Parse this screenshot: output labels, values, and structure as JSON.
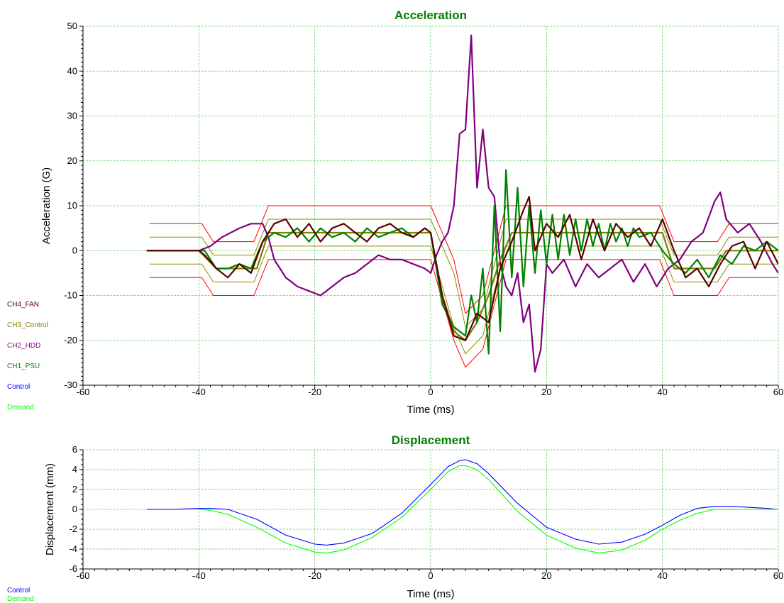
{
  "chart_data": [
    {
      "type": "line",
      "title": "Acceleration",
      "xlabel": "Time (ms)",
      "ylabel": "Acceleration (G)",
      "xlim": [
        -60,
        60
      ],
      "ylim": [
        -30,
        50
      ],
      "xticks": [
        -60,
        -40,
        -20,
        0,
        20,
        40,
        60
      ],
      "yticks": [
        -30,
        -20,
        -10,
        0,
        10,
        20,
        30,
        40,
        50
      ],
      "grid": true,
      "legend_position": "left",
      "legend": [
        "CH4_FAN",
        "CH3_Control",
        "CH2_HDD",
        "CH1_PSU",
        "Control",
        "Demand"
      ],
      "tolerance_bands": [
        {
          "color": "#ff0000",
          "x": [
            -48.5,
            -39.5,
            -37.5,
            -30.5,
            -28,
            0,
            4,
            6,
            9,
            13,
            39.5,
            42,
            49.5,
            51.5,
            60
          ],
          "upper": [
            6,
            6,
            2,
            2,
            10,
            10,
            -2,
            -14,
            -10,
            10,
            10,
            2,
            2,
            6,
            6
          ],
          "lower": [
            -6,
            -6,
            -10,
            -10,
            -2,
            -2,
            -20,
            -26,
            -22,
            -2,
            -2,
            -10,
            -10,
            -6,
            -6
          ]
        },
        {
          "color": "#8b8b00",
          "x": [
            -48.5,
            -39.5,
            -37.5,
            -30.5,
            -28,
            0,
            4,
            6,
            9,
            13,
            39.5,
            42,
            49.5,
            51.5,
            60
          ],
          "upper": [
            3,
            3,
            -1,
            -1,
            7,
            7,
            -5,
            -17,
            -13,
            7,
            7,
            -1,
            -1,
            3,
            3
          ],
          "lower": [
            -3,
            -3,
            -7,
            -7,
            1,
            1,
            -17,
            -23,
            -19,
            1,
            1,
            -7,
            -7,
            -3,
            -3
          ]
        }
      ],
      "series": [
        {
          "name": "CH4_FAN",
          "color": "#5a0000",
          "x": [
            -49,
            -40,
            -39,
            -37,
            -35,
            -33,
            -31,
            -29,
            -27,
            -25,
            -23,
            -21,
            -19,
            -17,
            -15,
            -13,
            -11,
            -9,
            -7,
            -5,
            -3,
            -1,
            0,
            2,
            4,
            6,
            8,
            10,
            12,
            14,
            16,
            17,
            18,
            20,
            22,
            24,
            26,
            28,
            30,
            32,
            34,
            36,
            38,
            40,
            42,
            44,
            46,
            48,
            50,
            52,
            54,
            56,
            58,
            60
          ],
          "values": [
            0,
            0,
            -1,
            -4,
            -6,
            -3,
            -5,
            2,
            6,
            7,
            3,
            6,
            2,
            5,
            6,
            4,
            2,
            5,
            6,
            4,
            3,
            5,
            4,
            -10,
            -19,
            -20,
            -14,
            -16,
            -4,
            2,
            9,
            12,
            0,
            6,
            3,
            8,
            -2,
            7,
            0,
            6,
            3,
            5,
            1,
            7,
            0,
            -6,
            -4,
            -8,
            -3,
            1,
            2,
            -4,
            2,
            -3
          ]
        },
        {
          "name": "CH3_Control",
          "color": "#808000",
          "x": [
            -49,
            -40,
            -37,
            -30,
            -28,
            0,
            2,
            4,
            6,
            8,
            10,
            12,
            14,
            20,
            30,
            38,
            40,
            42,
            49,
            51,
            60
          ],
          "values": [
            0,
            0,
            -4,
            -4,
            4,
            4,
            -10,
            -18,
            -20,
            -16,
            -10,
            -2,
            4,
            4,
            4,
            4,
            4,
            -4,
            -4,
            0,
            0
          ]
        },
        {
          "name": "CH2_HDD",
          "color": "#800080",
          "x": [
            -49,
            -40,
            -38,
            -36,
            -33,
            -31,
            -29,
            -28,
            -27,
            -25,
            -23,
            -21,
            -19,
            -17,
            -15,
            -13,
            -11,
            -9,
            -7,
            -5,
            -3,
            -1,
            0,
            1,
            2,
            3,
            4,
            5,
            6,
            7,
            8,
            9,
            10,
            11,
            12,
            13,
            14,
            15,
            16,
            17,
            18,
            19,
            20,
            21,
            23,
            25,
            27,
            29,
            31,
            33,
            35,
            37,
            39,
            41,
            43,
            45,
            47,
            49,
            50,
            51,
            53,
            55,
            57,
            59,
            60
          ],
          "values": [
            0,
            0,
            1,
            3,
            5,
            6,
            6,
            3,
            -2,
            -6,
            -8,
            -9,
            -10,
            -8,
            -6,
            -5,
            -3,
            -1,
            -2,
            -2,
            -3,
            -4,
            -5,
            -1,
            2,
            4,
            10,
            26,
            27,
            48,
            14,
            27,
            14,
            12,
            -3,
            -8,
            -10,
            -5,
            -16,
            -12,
            -27,
            -22,
            -3,
            -5,
            -2,
            -8,
            -3,
            -6,
            -4,
            -2,
            -7,
            -3,
            -8,
            -4,
            -2,
            2,
            4,
            11,
            13,
            7,
            4,
            6,
            2,
            -3,
            -5
          ]
        },
        {
          "name": "CH1_PSU",
          "color": "#008000",
          "x": [
            -49,
            -40,
            -39,
            -37,
            -35,
            -33,
            -31,
            -29,
            -27,
            -25,
            -23,
            -21,
            -19,
            -17,
            -15,
            -13,
            -11,
            -9,
            -7,
            -5,
            -3,
            -1,
            0,
            2,
            4,
            6,
            7,
            8,
            9,
            10,
            11,
            12,
            13,
            14,
            15,
            16,
            17,
            18,
            19,
            20,
            21,
            22,
            23,
            24,
            25,
            26,
            27,
            28,
            29,
            30,
            31,
            32,
            33,
            34,
            35,
            36,
            38,
            40,
            42,
            44,
            46,
            48,
            50,
            52,
            54,
            56,
            58,
            60
          ],
          "values": [
            0,
            0,
            0,
            -4,
            -4,
            -3,
            -4,
            2,
            4,
            3,
            5,
            2,
            5,
            3,
            4,
            2,
            5,
            3,
            4,
            5,
            3,
            5,
            4,
            -12,
            -17,
            -19,
            -10,
            -16,
            -4,
            -23,
            10,
            -18,
            18,
            -6,
            14,
            -8,
            10,
            -5,
            9,
            -3,
            8,
            -2,
            8,
            -1,
            7,
            0,
            7,
            1,
            6,
            0,
            6,
            2,
            5,
            1,
            5,
            3,
            4,
            0,
            -3,
            -5,
            -2,
            -6,
            -1,
            -3,
            1,
            0,
            2,
            0
          ]
        }
      ]
    },
    {
      "type": "line",
      "title": "Displacement",
      "xlabel": "Time (ms)",
      "ylabel": "Displacement (mm)",
      "xlim": [
        -60,
        60
      ],
      "ylim": [
        -6,
        6
      ],
      "xticks": [
        -60,
        -40,
        -20,
        0,
        20,
        40,
        60
      ],
      "yticks": [
        -6,
        -4,
        -2,
        0,
        2,
        4,
        6
      ],
      "grid": true,
      "legend_position": "left",
      "legend": [
        "Control",
        "Demand"
      ],
      "series": [
        {
          "name": "Control",
          "color": "#0000ff",
          "x": [
            -49,
            -44,
            -40,
            -38,
            -35,
            -30,
            -25,
            -20,
            -18,
            -15,
            -10,
            -5,
            0,
            3,
            5,
            6,
            8,
            10,
            15,
            20,
            25,
            29,
            33,
            37,
            40,
            43,
            46,
            49,
            52,
            55,
            58,
            60
          ],
          "values": [
            0,
            0,
            0.1,
            0.1,
            0,
            -1,
            -2.6,
            -3.5,
            -3.6,
            -3.4,
            -2.4,
            -0.4,
            2.5,
            4.3,
            4.9,
            5,
            4.6,
            3.6,
            0.6,
            -1.8,
            -3,
            -3.5,
            -3.3,
            -2.5,
            -1.6,
            -0.6,
            0.1,
            0.3,
            0.3,
            0.2,
            0.1,
            0
          ]
        },
        {
          "name": "Demand",
          "color": "#00ff00",
          "x": [
            -40,
            -38,
            -35,
            -30,
            -25,
            -20,
            -18,
            -15,
            -10,
            -5,
            0,
            3,
            5,
            6,
            8,
            10,
            15,
            20,
            25,
            29,
            33,
            37,
            40,
            43,
            46,
            49,
            52,
            55,
            58,
            60
          ],
          "values": [
            0,
            -0.1,
            -0.5,
            -1.8,
            -3.4,
            -4.3,
            -4.4,
            -4.1,
            -2.8,
            -0.8,
            2,
            3.8,
            4.4,
            4.4,
            4,
            3,
            -0.2,
            -2.6,
            -3.9,
            -4.4,
            -4.1,
            -3.1,
            -2,
            -1.1,
            -0.4,
            0,
            0,
            0,
            0,
            0
          ]
        }
      ]
    }
  ]
}
